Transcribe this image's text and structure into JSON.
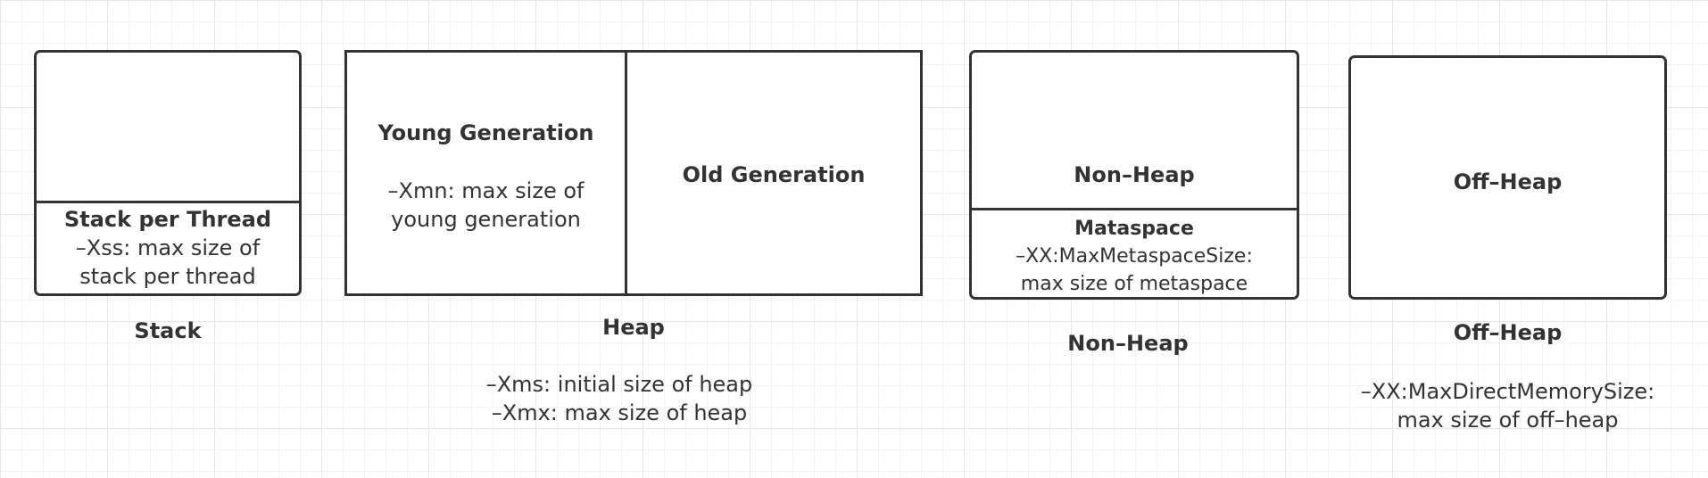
{
  "stack": {
    "inner_title": "Stack per Thread",
    "inner_line1": "–Xss: max size of",
    "inner_line2": "stack per thread",
    "caption": "Stack"
  },
  "heap": {
    "young_title": "Young Generation",
    "young_line1": "–Xmn: max size of",
    "young_line2": "young generation",
    "old_title": "Old Generation",
    "caption": "Heap",
    "note_line1": "–Xms: initial size of heap",
    "note_line2": "–Xmx: max size of heap"
  },
  "non_heap": {
    "box_title": "Non–Heap",
    "meta_title": "Mataspace",
    "meta_line1": "–XX:MaxMetaspaceSize:",
    "meta_line2": "max size of metaspace",
    "caption": "Non–Heap"
  },
  "off_heap": {
    "box_title": "Off–Heap",
    "caption": "Off–Heap",
    "note_line1": "–XX:MaxDirectMemorySize:",
    "note_line2": "max size of off–heap"
  }
}
